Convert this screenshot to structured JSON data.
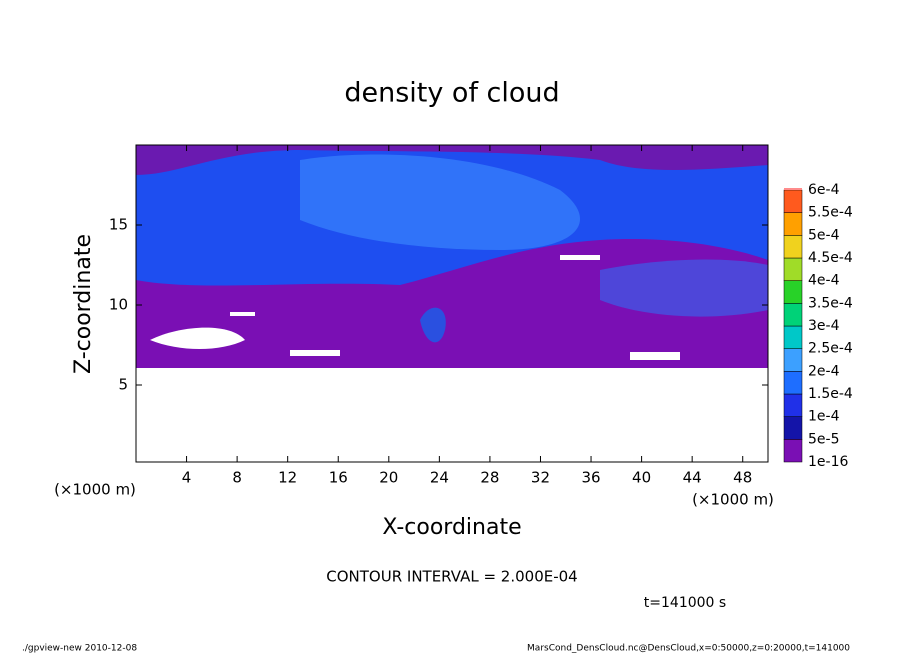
{
  "chart_data": {
    "type": "contour",
    "title": "density of cloud",
    "x_label": "X-coordinate",
    "y_label": "Z-coordinate",
    "x_unit": "(×1000 m)",
    "y_unit": "(×1000 m)",
    "xlim": [
      0,
      50
    ],
    "xticks": [
      4,
      8,
      12,
      16,
      20,
      24,
      28,
      32,
      36,
      40,
      44,
      48
    ],
    "ylim": [
      0,
      20
    ],
    "yticks": [
      5,
      10,
      15
    ],
    "levels": [
      {
        "value": 1e-16,
        "label": "1e-16"
      },
      {
        "value": 5e-05,
        "label": "5e-5"
      },
      {
        "value": 0.0001,
        "label": "1e-4"
      },
      {
        "value": 0.00015,
        "label": "1.5e-4"
      },
      {
        "value": 0.0002,
        "label": "2e-4"
      },
      {
        "value": 0.00025,
        "label": "2.5e-4"
      },
      {
        "value": 0.0003,
        "label": "3e-4"
      },
      {
        "value": 0.00035,
        "label": "3.5e-4"
      },
      {
        "value": 0.0004,
        "label": "4e-4"
      },
      {
        "value": 0.00045,
        "label": "4.5e-4"
      },
      {
        "value": 0.0005,
        "label": "5e-4"
      },
      {
        "value": 0.00055,
        "label": "5.5e-4"
      },
      {
        "value": 0.0006,
        "label": "6e-4"
      }
    ],
    "colors": [
      "#7a0fb4",
      "#1414a8",
      "#2030e8",
      "#1e6eff",
      "#3ca0ff",
      "#00c8c8",
      "#00d278",
      "#28d228",
      "#a0dc28",
      "#f0d21e",
      "#ffa000",
      "#ff5a1e",
      "#ff8c8c"
    ],
    "contour_interval": "CONTOUR INTERVAL = 2.000E-04",
    "time_label": "t=141000 s",
    "footer_left": "./gpview-new  2010-12-08",
    "footer_right": "MarsCond_DensCloud.nc@DensCloud,x=0:50000,z=0:20000,t=141000"
  }
}
